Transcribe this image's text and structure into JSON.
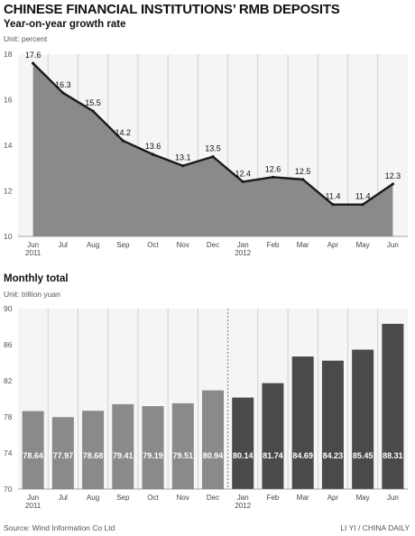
{
  "header": {
    "title": "CHINESE FINANCIAL INSTITUTIONS’ RMB DEPOSITS"
  },
  "footer": {
    "source": "Source: Wind Information Co Ltd",
    "credit": "LI YI / CHINA DAILY"
  },
  "colors": {
    "area_fill": "#8a8a8a",
    "line": "#1a1a1a",
    "bar_2011": "#8a8a8a",
    "bar_2012": "#4a4a4a",
    "panel_bg": "#f5f5f5",
    "grid": "#c8c8c8"
  },
  "chart_data": [
    {
      "type": "area",
      "title": "Year-on-year growth rate",
      "ylabel": "Unit: percent",
      "categories": [
        "Jun\n2011",
        "Jul",
        "Aug",
        "Sep",
        "Oct",
        "Nov",
        "Dec",
        "Jan\n2012",
        "Feb",
        "Mar",
        "Apr",
        "May",
        "Jun"
      ],
      "values": [
        17.6,
        16.3,
        15.5,
        14.2,
        13.6,
        13.1,
        13.5,
        12.4,
        12.6,
        12.5,
        11.4,
        11.4,
        12.3
      ],
      "ylim": [
        10,
        18
      ],
      "yticks": [
        10,
        12,
        14,
        16,
        18
      ],
      "grid": true
    },
    {
      "type": "bar",
      "title": "Monthly total",
      "ylabel": "Unit: trillion yuan",
      "categories": [
        "Jun\n2011",
        "Jul",
        "Aug",
        "Sep",
        "Oct",
        "Nov",
        "Dec",
        "Jan\n2012",
        "Feb",
        "Mar",
        "Apr",
        "May",
        "Jun"
      ],
      "values": [
        78.64,
        77.97,
        78.68,
        79.41,
        79.19,
        79.51,
        80.94,
        80.14,
        81.74,
        84.69,
        84.23,
        85.45,
        88.31
      ],
      "ylim": [
        70,
        90
      ],
      "yticks": [
        70,
        74,
        78,
        82,
        86,
        90
      ],
      "grid": true
    }
  ]
}
